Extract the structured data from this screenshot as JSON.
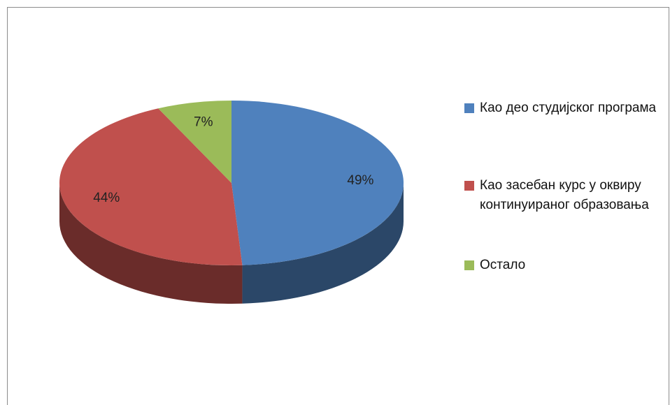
{
  "chart_data": {
    "type": "pie",
    "categories": [
      "Као део студијског програма",
      "Као засебан курс у оквиру континуираног образовања",
      "Остало"
    ],
    "values": [
      49,
      44,
      7
    ],
    "value_labels": [
      "49%",
      "44%",
      "7%"
    ],
    "colors": [
      "#4f81bd",
      "#c0504d",
      "#9bbb59"
    ],
    "legend": "right"
  }
}
